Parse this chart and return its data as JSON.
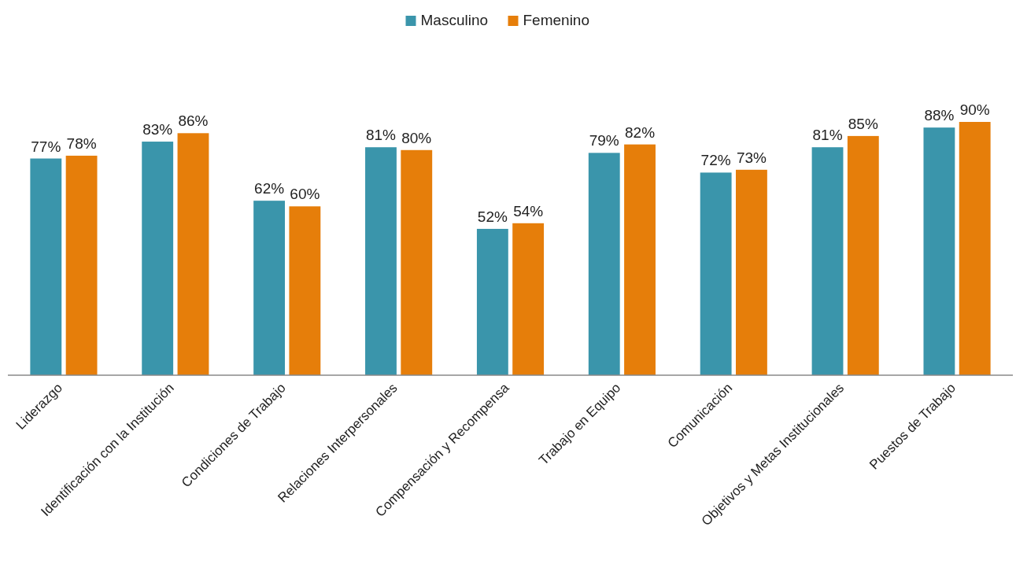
{
  "chart_data": {
    "type": "bar",
    "categories": [
      "Liderazgo",
      "Identificación con la Institución",
      "Condiciones de Trabajo",
      "Relaciones Interpersonales",
      "Compensación y Recompensa",
      "Trabajo en Equipo",
      "Comunicación",
      "Objetivos y Metas Institucionales",
      "Puestos de Trabajo"
    ],
    "series": [
      {
        "name": "Masculino",
        "color": "#3a95ab",
        "values": [
          77,
          83,
          62,
          81,
          52,
          79,
          72,
          81,
          88
        ],
        "value_labels": [
          "77%",
          "83%",
          "62%",
          "81%",
          "52%",
          "79%",
          "72%",
          "81%",
          "88%"
        ]
      },
      {
        "name": "Femenino",
        "color": "#e67e0a",
        "values": [
          78,
          86,
          60,
          80,
          54,
          82,
          73,
          85,
          90
        ],
        "value_labels": [
          "78%",
          "86%",
          "60%",
          "80%",
          "54%",
          "82%",
          "73%",
          "85%",
          "90%"
        ]
      }
    ],
    "tick_labels": "x",
    "legend": "top"
  }
}
